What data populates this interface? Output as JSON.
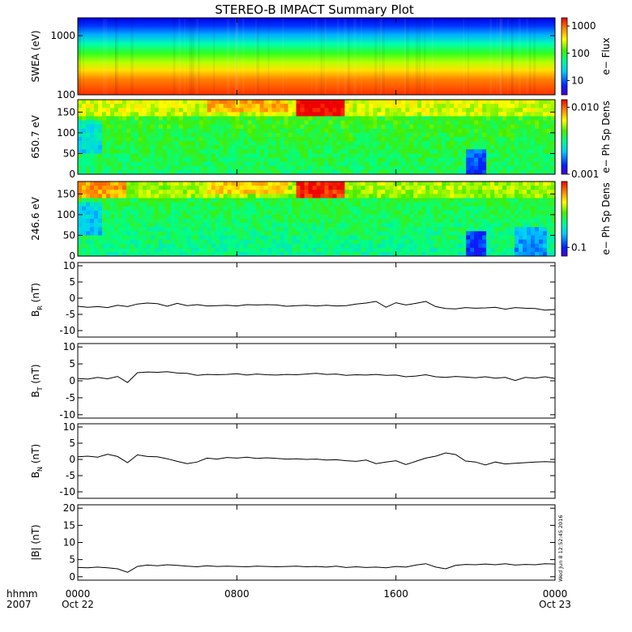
{
  "title": "STEREO-B IMPACT Summary Plot",
  "timestamp_stamp": "Wed Jun 8 12:52:45 2016",
  "x_axis": {
    "range_hours": [
      0,
      24
    ],
    "label_line1": "hhmm",
    "label_line2": "2007",
    "ticks": [
      {
        "hour": 0,
        "label": "0000",
        "sublabel": "Oct 22"
      },
      {
        "hour": 8,
        "label": "0800",
        "sublabel": ""
      },
      {
        "hour": 16,
        "label": "1600",
        "sublabel": ""
      },
      {
        "hour": 24,
        "label": "0000",
        "sublabel": "Oct 23"
      }
    ]
  },
  "chart_data": [
    {
      "type": "heatmap",
      "id": "swea",
      "ylabel": "SWEA (eV)",
      "y_scale": "log",
      "ylim": [
        100,
        2000
      ],
      "y_ticks": [
        {
          "v": 100,
          "label": "100"
        },
        {
          "v": 1000,
          "label": "1000"
        }
      ],
      "colorbar": {
        "label": "e− Flux",
        "scale": "log",
        "range": [
          3,
          2000
        ],
        "ticks": [
          {
            "v": 10,
            "label": "10"
          },
          {
            "v": 100,
            "label": "100"
          },
          {
            "v": 1000,
            "label": "1000"
          }
        ]
      }
    },
    {
      "type": "heatmap",
      "id": "pad650",
      "ylabel": "650.7 eV",
      "ylim": [
        0,
        180
      ],
      "y_ticks": [
        {
          "v": 0,
          "label": "0"
        },
        {
          "v": 50,
          "label": "50"
        },
        {
          "v": 100,
          "label": "100"
        },
        {
          "v": 150,
          "label": "150"
        }
      ],
      "colorbar": {
        "label": "e− Ph Sp Dens",
        "scale": "log",
        "range": [
          0.001,
          0.013
        ],
        "ticks": [
          {
            "v": 0.001,
            "label": "0.001"
          },
          {
            "v": 0.01,
            "label": "0.010"
          }
        ]
      }
    },
    {
      "type": "heatmap",
      "id": "pad246",
      "ylabel": "246.6 eV",
      "ylim": [
        0,
        180
      ],
      "y_ticks": [
        {
          "v": 0,
          "label": "0"
        },
        {
          "v": 50,
          "label": "50"
        },
        {
          "v": 100,
          "label": "100"
        },
        {
          "v": 150,
          "label": "150"
        }
      ],
      "colorbar": {
        "label": "e− Ph Sp Dens",
        "scale": "log",
        "range": [
          0.07,
          1.5
        ],
        "ticks": [
          {
            "v": 0.1,
            "label": "0.1"
          }
        ]
      }
    },
    {
      "type": "line",
      "id": "br",
      "ylabel_main": "B",
      "ylabel_sub": "R",
      "ylabel_unit": " (nT)",
      "ylim": [
        -12,
        11
      ],
      "y_ticks": [
        -10,
        -5,
        0,
        5,
        10
      ],
      "series": [
        {
          "x": [
            0,
            0.5,
            1,
            1.5,
            2,
            2.5,
            3,
            3.5,
            4,
            4.5,
            5,
            5.5,
            6,
            6.5,
            7,
            7.5,
            8,
            8.5,
            9,
            9.5,
            10,
            10.5,
            11,
            11.5,
            12,
            12.5,
            13,
            13.5,
            14,
            14.5,
            15,
            15.5,
            16,
            16.5,
            17,
            17.5,
            18,
            18.5,
            19,
            19.5,
            20,
            20.5,
            21,
            21.5,
            22,
            22.5,
            23,
            23.5,
            24
          ],
          "y": [
            -2.5,
            -2.8,
            -2.6,
            -2.9,
            -2.2,
            -2.6,
            -1.8,
            -1.5,
            -1.7,
            -2.5,
            -1.6,
            -2.3,
            -2.0,
            -2.4,
            -2.3,
            -2.2,
            -2.4,
            -2.0,
            -2.1,
            -2.0,
            -2.1,
            -2.5,
            -2.3,
            -2.2,
            -2.4,
            -2.2,
            -2.4,
            -2.3,
            -1.8,
            -1.5,
            -1.0,
            -2.8,
            -1.4,
            -2.1,
            -1.6,
            -1.0,
            -2.6,
            -3.2,
            -3.3,
            -2.9,
            -3.1,
            -3.0,
            -2.8,
            -3.4,
            -2.9,
            -3.1,
            -3.2,
            -3.7,
            -3.5
          ]
        }
      ]
    },
    {
      "type": "line",
      "id": "bt",
      "ylabel_main": "B",
      "ylabel_sub": "T",
      "ylabel_unit": " (nT)",
      "ylim": [
        -11,
        11
      ],
      "y_ticks": [
        -10,
        -5,
        0,
        5,
        10
      ],
      "series": [
        {
          "x": [
            0,
            0.5,
            1,
            1.5,
            2,
            2.5,
            3,
            3.5,
            4,
            4.5,
            5,
            5.5,
            6,
            6.5,
            7,
            7.5,
            8,
            8.5,
            9,
            9.5,
            10,
            10.5,
            11,
            11.5,
            12,
            12.5,
            13,
            13.5,
            14,
            14.5,
            15,
            15.5,
            16,
            16.5,
            17,
            17.5,
            18,
            18.5,
            19,
            19.5,
            20,
            20.5,
            21,
            21.5,
            22,
            22.5,
            23,
            23.5,
            24
          ],
          "y": [
            0.7,
            0.5,
            1.0,
            0.6,
            1.3,
            -0.5,
            2.4,
            2.6,
            2.5,
            2.7,
            2.3,
            2.2,
            1.6,
            1.9,
            1.8,
            1.9,
            2.1,
            1.7,
            2.0,
            1.8,
            1.7,
            1.9,
            1.8,
            2.0,
            2.2,
            1.9,
            2.0,
            1.6,
            1.8,
            1.7,
            1.9,
            1.6,
            1.7,
            1.2,
            1.4,
            1.8,
            1.2,
            1.0,
            1.3,
            1.1,
            0.9,
            1.2,
            0.8,
            1.0,
            0.1,
            1.0,
            0.8,
            1.2,
            0.7
          ]
        }
      ]
    },
    {
      "type": "line",
      "id": "bn",
      "ylabel_main": "B",
      "ylabel_sub": "N",
      "ylabel_unit": " (nT)",
      "ylim": [
        -12,
        11
      ],
      "y_ticks": [
        -10,
        -5,
        0,
        5,
        10
      ],
      "series": [
        {
          "x": [
            0,
            0.5,
            1,
            1.5,
            2,
            2.5,
            3,
            3.5,
            4,
            4.5,
            5,
            5.5,
            6,
            6.5,
            7,
            7.5,
            8,
            8.5,
            9,
            9.5,
            10,
            10.5,
            11,
            11.5,
            12,
            12.5,
            13,
            13.5,
            14,
            14.5,
            15,
            15.5,
            16,
            16.5,
            17,
            17.5,
            18,
            18.5,
            19,
            19.5,
            20,
            20.5,
            21,
            21.5,
            22,
            22.5,
            23,
            23.5,
            24
          ],
          "y": [
            0.8,
            1.0,
            0.7,
            1.6,
            0.9,
            -1.0,
            1.4,
            0.9,
            0.8,
            0.2,
            -0.6,
            -1.3,
            -0.8,
            0.4,
            0.1,
            0.6,
            0.4,
            0.7,
            0.3,
            0.5,
            0.3,
            0.1,
            0.2,
            0.0,
            0.1,
            -0.2,
            -0.1,
            -0.4,
            -0.6,
            -0.2,
            -1.3,
            -0.8,
            -0.4,
            -1.6,
            -0.6,
            0.4,
            1.0,
            2.0,
            1.5,
            -0.5,
            -0.8,
            -1.7,
            -0.8,
            -1.4,
            -1.2,
            -1.0,
            -0.8,
            -0.7,
            -0.8
          ]
        }
      ]
    },
    {
      "type": "line",
      "id": "bmag",
      "ylabel_main": "|B|",
      "ylabel_sub": "",
      "ylabel_unit": " (nT)",
      "ylim": [
        -1,
        21
      ],
      "y_ticks": [
        0,
        5,
        10,
        15,
        20
      ],
      "series": [
        {
          "x": [
            0,
            0.5,
            1,
            1.5,
            2,
            2.5,
            3,
            3.5,
            4,
            4.5,
            5,
            5.5,
            6,
            6.5,
            7,
            7.5,
            8,
            8.5,
            9,
            9.5,
            10,
            10.5,
            11,
            11.5,
            12,
            12.5,
            13,
            13.5,
            14,
            14.5,
            15,
            15.5,
            16,
            16.5,
            17,
            17.5,
            18,
            18.5,
            19,
            19.5,
            20,
            20.5,
            21,
            21.5,
            22,
            22.5,
            23,
            23.5,
            24
          ],
          "y": [
            2.7,
            2.6,
            2.8,
            2.6,
            2.3,
            1.3,
            3.0,
            3.4,
            3.2,
            3.5,
            3.3,
            3.1,
            2.9,
            3.2,
            3.0,
            3.1,
            3.0,
            2.9,
            3.1,
            3.0,
            2.9,
            3.0,
            3.1,
            2.9,
            3.0,
            2.8,
            3.1,
            2.7,
            2.9,
            2.7,
            2.8,
            2.6,
            3.0,
            2.8,
            3.4,
            3.8,
            2.8,
            2.3,
            3.3,
            3.6,
            3.5,
            3.7,
            3.5,
            3.8,
            3.4,
            3.6,
            3.5,
            3.8,
            3.7
          ]
        }
      ]
    }
  ]
}
